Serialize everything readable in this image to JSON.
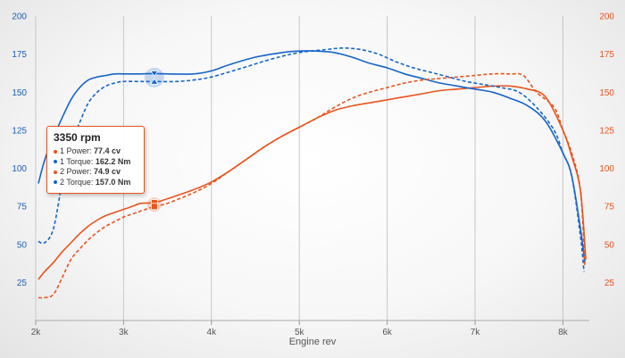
{
  "chart_data": {
    "type": "line",
    "title": "",
    "xlabel": "Engine rev",
    "xlim": [
      2000,
      8300
    ],
    "x_ticks": [
      "2k",
      "3k",
      "4k",
      "5k",
      "6k",
      "7k",
      "8k"
    ],
    "y_left": {
      "range": [
        0,
        200
      ],
      "ticks": [
        "25",
        "50",
        "75",
        "100",
        "125",
        "150",
        "175",
        "200"
      ]
    },
    "y_right": {
      "range": [
        0,
        200
      ],
      "ticks": [
        "25",
        "50",
        "75",
        "100",
        "125",
        "150",
        "175",
        "200"
      ]
    },
    "grid": "vertical",
    "colors": {
      "torque": "#1565c8",
      "power": "#e8541c"
    },
    "series": [
      {
        "name": "1 Power",
        "axis": "right",
        "style": "solid",
        "color": "#e8541c",
        "points": [
          [
            2030,
            27
          ],
          [
            2100,
            32
          ],
          [
            2200,
            38
          ],
          [
            2300,
            45
          ],
          [
            2400,
            51
          ],
          [
            2500,
            57
          ],
          [
            2600,
            62
          ],
          [
            2700,
            66
          ],
          [
            2800,
            69
          ],
          [
            2900,
            71
          ],
          [
            3000,
            73
          ],
          [
            3100,
            75
          ],
          [
            3200,
            77
          ],
          [
            3350,
            77.4
          ],
          [
            3500,
            80
          ],
          [
            3800,
            86
          ],
          [
            4000,
            91
          ],
          [
            4200,
            98
          ],
          [
            4400,
            106
          ],
          [
            4600,
            114
          ],
          [
            4800,
            121
          ],
          [
            5000,
            127
          ],
          [
            5200,
            133
          ],
          [
            5400,
            138
          ],
          [
            5600,
            141
          ],
          [
            5800,
            143
          ],
          [
            6000,
            145
          ],
          [
            6200,
            147
          ],
          [
            6400,
            149
          ],
          [
            6600,
            151
          ],
          [
            6800,
            152
          ],
          [
            7000,
            153
          ],
          [
            7200,
            154
          ],
          [
            7400,
            154
          ],
          [
            7600,
            152
          ],
          [
            7800,
            147
          ],
          [
            8000,
            125
          ],
          [
            8100,
            108
          ],
          [
            8200,
            85
          ],
          [
            8260,
            40
          ]
        ]
      },
      {
        "name": "1 Torque",
        "axis": "left",
        "style": "solid",
        "color": "#1565c8",
        "points": [
          [
            2030,
            90
          ],
          [
            2100,
            105
          ],
          [
            2200,
            120
          ],
          [
            2300,
            133
          ],
          [
            2400,
            145
          ],
          [
            2500,
            153
          ],
          [
            2600,
            158
          ],
          [
            2700,
            160
          ],
          [
            2800,
            161
          ],
          [
            2900,
            162
          ],
          [
            3000,
            162
          ],
          [
            3200,
            162
          ],
          [
            3350,
            162.2
          ],
          [
            3500,
            162
          ],
          [
            3800,
            162
          ],
          [
            4000,
            164
          ],
          [
            4200,
            168
          ],
          [
            4500,
            173
          ],
          [
            4800,
            176
          ],
          [
            5000,
            177
          ],
          [
            5200,
            177
          ],
          [
            5400,
            176
          ],
          [
            5600,
            173
          ],
          [
            5800,
            169
          ],
          [
            6000,
            166
          ],
          [
            6200,
            162
          ],
          [
            6400,
            159
          ],
          [
            6600,
            156
          ],
          [
            6800,
            154
          ],
          [
            7000,
            152
          ],
          [
            7200,
            150
          ],
          [
            7400,
            146
          ],
          [
            7600,
            141
          ],
          [
            7800,
            131
          ],
          [
            8000,
            110
          ],
          [
            8100,
            95
          ],
          [
            8200,
            60
          ],
          [
            8250,
            38
          ]
        ]
      },
      {
        "name": "2 Power",
        "axis": "right",
        "style": "dashed",
        "color": "#e8541c",
        "points": [
          [
            2030,
            15
          ],
          [
            2100,
            15
          ],
          [
            2200,
            17
          ],
          [
            2300,
            28
          ],
          [
            2400,
            40
          ],
          [
            2500,
            47
          ],
          [
            2600,
            53
          ],
          [
            2700,
            58
          ],
          [
            2800,
            62
          ],
          [
            2900,
            65
          ],
          [
            3000,
            68
          ],
          [
            3100,
            70
          ],
          [
            3200,
            72
          ],
          [
            3350,
            74.9
          ],
          [
            3500,
            77
          ],
          [
            3800,
            84
          ],
          [
            4000,
            90
          ],
          [
            4200,
            98
          ],
          [
            4400,
            106
          ],
          [
            4600,
            114
          ],
          [
            4800,
            121
          ],
          [
            5000,
            127
          ],
          [
            5200,
            133
          ],
          [
            5400,
            140
          ],
          [
            5600,
            146
          ],
          [
            5800,
            150
          ],
          [
            6000,
            153
          ],
          [
            6200,
            156
          ],
          [
            6400,
            158
          ],
          [
            6600,
            159
          ],
          [
            6800,
            160
          ],
          [
            7000,
            161
          ],
          [
            7200,
            162
          ],
          [
            7400,
            162
          ],
          [
            7550,
            161
          ],
          [
            7700,
            150
          ],
          [
            7900,
            140
          ],
          [
            8000,
            125
          ],
          [
            8100,
            110
          ],
          [
            8200,
            85
          ],
          [
            8250,
            35
          ]
        ]
      },
      {
        "name": "2 Torque",
        "axis": "left",
        "style": "dashed",
        "color": "#1565c8",
        "points": [
          [
            2030,
            52
          ],
          [
            2100,
            51
          ],
          [
            2200,
            60
          ],
          [
            2300,
            90
          ],
          [
            2400,
            115
          ],
          [
            2500,
            130
          ],
          [
            2600,
            143
          ],
          [
            2700,
            150
          ],
          [
            2800,
            154
          ],
          [
            2900,
            156
          ],
          [
            3000,
            157
          ],
          [
            3200,
            157
          ],
          [
            3350,
            157
          ],
          [
            3600,
            157
          ],
          [
            3800,
            158
          ],
          [
            4000,
            160
          ],
          [
            4300,
            165
          ],
          [
            4700,
            172
          ],
          [
            5000,
            176
          ],
          [
            5300,
            178
          ],
          [
            5500,
            179
          ],
          [
            5700,
            178
          ],
          [
            5900,
            175
          ],
          [
            6100,
            170
          ],
          [
            6300,
            166
          ],
          [
            6500,
            163
          ],
          [
            6700,
            160
          ],
          [
            6900,
            157
          ],
          [
            7100,
            155
          ],
          [
            7300,
            153
          ],
          [
            7500,
            150
          ],
          [
            7700,
            140
          ],
          [
            7900,
            125
          ],
          [
            8000,
            110
          ],
          [
            8100,
            95
          ],
          [
            8200,
            55
          ],
          [
            8240,
            32
          ]
        ]
      }
    ],
    "tooltip": {
      "title": "3350 rpm",
      "x": 3350,
      "rows": [
        {
          "label": "1 Power: ",
          "value": "77.4 cv",
          "color": "#e8541c"
        },
        {
          "label": "1 Torque: ",
          "value": "162.2 Nm",
          "color": "#1565c8"
        },
        {
          "label": "2 Power: ",
          "value": "74.9 cv",
          "color": "#e8541c"
        },
        {
          "label": "2 Torque: ",
          "value": "157.0 Nm",
          "color": "#1565c8"
        }
      ]
    }
  }
}
